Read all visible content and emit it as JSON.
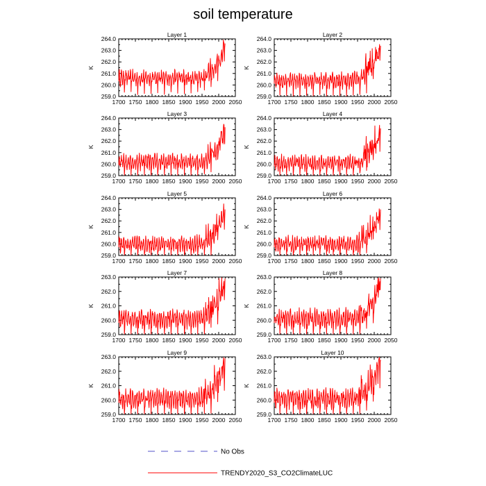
{
  "figure": {
    "title": "soil temperature",
    "legend": [
      {
        "label": "No Obs",
        "color": "#5050c8",
        "dash": "dashed"
      },
      {
        "label": "TRENDY2020_S3_CO2ClimateLUC",
        "color": "#ff0000",
        "dash": "solid"
      }
    ]
  },
  "chart_data": [
    {
      "type": "line",
      "title": "Layer 1",
      "ylabel": "K",
      "xlim": [
        1700,
        2050
      ],
      "xticks": [
        "1700",
        "1750",
        "1800",
        "1850",
        "1900",
        "1950",
        "2000",
        "2050"
      ],
      "ylim": [
        259.0,
        264.0
      ],
      "yticks": [
        "259.0",
        "260.0",
        "261.0",
        "262.0",
        "263.0",
        "264.0"
      ],
      "series": [
        {
          "name": "TRENDY2020_S3_CO2ClimateLUC",
          "color": "#ff0000",
          "x_range": [
            1700,
            2019
          ],
          "base_value": 260.6,
          "final_value": 263.6
        }
      ]
    },
    {
      "type": "line",
      "title": "Layer 2",
      "ylabel": "K",
      "xlim": [
        1700,
        2050
      ],
      "xticks": [
        "1700",
        "1750",
        "1800",
        "1850",
        "1900",
        "1950",
        "2000",
        "2050"
      ],
      "ylim": [
        259.0,
        264.0
      ],
      "yticks": [
        "259.0",
        "260.0",
        "261.0",
        "262.0",
        "263.0",
        "264.0"
      ],
      "series": [
        {
          "name": "TRENDY2020_S3_CO2ClimateLUC",
          "color": "#ff0000",
          "x_range": [
            1700,
            2019
          ],
          "base_value": 260.4,
          "final_value": 263.4
        }
      ]
    },
    {
      "type": "line",
      "title": "Layer 3",
      "ylabel": "K",
      "xlim": [
        1700,
        2050
      ],
      "xticks": [
        "1700",
        "1750",
        "1800",
        "1850",
        "1900",
        "1950",
        "2000",
        "2050"
      ],
      "ylim": [
        259.0,
        264.0
      ],
      "yticks": [
        "259.0",
        "260.0",
        "261.0",
        "262.0",
        "263.0",
        "264.0"
      ],
      "series": [
        {
          "name": "TRENDY2020_S3_CO2ClimateLUC",
          "color": "#ff0000",
          "x_range": [
            1700,
            2019
          ],
          "base_value": 260.2,
          "final_value": 263.2
        }
      ]
    },
    {
      "type": "line",
      "title": "Layer 4",
      "ylabel": "K",
      "xlim": [
        1700,
        2050
      ],
      "xticks": [
        "1700",
        "1750",
        "1800",
        "1850",
        "1900",
        "1950",
        "2000",
        "2050"
      ],
      "ylim": [
        259.0,
        264.0
      ],
      "yticks": [
        "259.0",
        "260.0",
        "261.0",
        "262.0",
        "263.0",
        "264.0"
      ],
      "series": [
        {
          "name": "TRENDY2020_S3_CO2ClimateLUC",
          "color": "#ff0000",
          "x_range": [
            1700,
            2019
          ],
          "base_value": 260.1,
          "final_value": 263.1
        }
      ]
    },
    {
      "type": "line",
      "title": "Layer 5",
      "ylabel": "K",
      "xlim": [
        1700,
        2050
      ],
      "xticks": [
        "1700",
        "1750",
        "1800",
        "1850",
        "1900",
        "1950",
        "2000",
        "2050"
      ],
      "ylim": [
        259.0,
        264.0
      ],
      "yticks": [
        "259.0",
        "260.0",
        "261.0",
        "262.0",
        "263.0",
        "264.0"
      ],
      "series": [
        {
          "name": "TRENDY2020_S3_CO2ClimateLUC",
          "color": "#ff0000",
          "x_range": [
            1700,
            2019
          ],
          "base_value": 260.0,
          "final_value": 263.0
        }
      ]
    },
    {
      "type": "line",
      "title": "Layer 6",
      "ylabel": "K",
      "xlim": [
        1700,
        2050
      ],
      "xticks": [
        "1700",
        "1750",
        "1800",
        "1850",
        "1900",
        "1950",
        "2000",
        "2050"
      ],
      "ylim": [
        259.0,
        264.0
      ],
      "yticks": [
        "259.0",
        "260.0",
        "261.0",
        "262.0",
        "263.0",
        "264.0"
      ],
      "series": [
        {
          "name": "TRENDY2020_S3_CO2ClimateLUC",
          "color": "#ff0000",
          "x_range": [
            1700,
            2019
          ],
          "base_value": 260.0,
          "final_value": 263.0
        }
      ]
    },
    {
      "type": "line",
      "title": "Layer 7",
      "ylabel": "K",
      "xlim": [
        1700,
        2050
      ],
      "xticks": [
        "1700",
        "1750",
        "1800",
        "1850",
        "1900",
        "1950",
        "2000",
        "2050"
      ],
      "ylim": [
        259.0,
        263.0
      ],
      "yticks": [
        "259.0",
        "260.0",
        "261.0",
        "262.0",
        "263.0"
      ],
      "series": [
        {
          "name": "TRENDY2020_S3_CO2ClimateLUC",
          "color": "#ff0000",
          "x_range": [
            1700,
            2019
          ],
          "base_value": 260.1,
          "final_value": 262.9
        }
      ]
    },
    {
      "type": "line",
      "title": "Layer 8",
      "ylabel": "K",
      "xlim": [
        1700,
        2050
      ],
      "xticks": [
        "1700",
        "1750",
        "1800",
        "1850",
        "1900",
        "1950",
        "2000",
        "2050"
      ],
      "ylim": [
        259.0,
        263.0
      ],
      "yticks": [
        "259.0",
        "260.0",
        "261.0",
        "262.0",
        "263.0"
      ],
      "series": [
        {
          "name": "TRENDY2020_S3_CO2ClimateLUC",
          "color": "#ff0000",
          "x_range": [
            1700,
            2019
          ],
          "base_value": 260.1,
          "final_value": 262.9
        }
      ]
    },
    {
      "type": "line",
      "title": "Layer 9",
      "ylabel": "K",
      "xlim": [
        1700,
        2050
      ],
      "xticks": [
        "1700",
        "1750",
        "1800",
        "1850",
        "1900",
        "1950",
        "2000",
        "2050"
      ],
      "ylim": [
        259.0,
        263.0
      ],
      "yticks": [
        "259.0",
        "260.0",
        "261.0",
        "262.0",
        "263.0"
      ],
      "series": [
        {
          "name": "TRENDY2020_S3_CO2ClimateLUC",
          "color": "#ff0000",
          "x_range": [
            1700,
            2019
          ],
          "base_value": 260.1,
          "final_value": 262.9
        }
      ]
    },
    {
      "type": "line",
      "title": "Layer 10",
      "ylabel": "K",
      "xlim": [
        1700,
        2050
      ],
      "xticks": [
        "1700",
        "1750",
        "1800",
        "1850",
        "1900",
        "1950",
        "2000",
        "2050"
      ],
      "ylim": [
        259.0,
        263.0
      ],
      "yticks": [
        "259.0",
        "260.0",
        "261.0",
        "262.0",
        "263.0"
      ],
      "series": [
        {
          "name": "TRENDY2020_S3_CO2ClimateLUC",
          "color": "#ff0000",
          "x_range": [
            1700,
            2019
          ],
          "base_value": 260.1,
          "final_value": 262.8
        }
      ]
    }
  ]
}
